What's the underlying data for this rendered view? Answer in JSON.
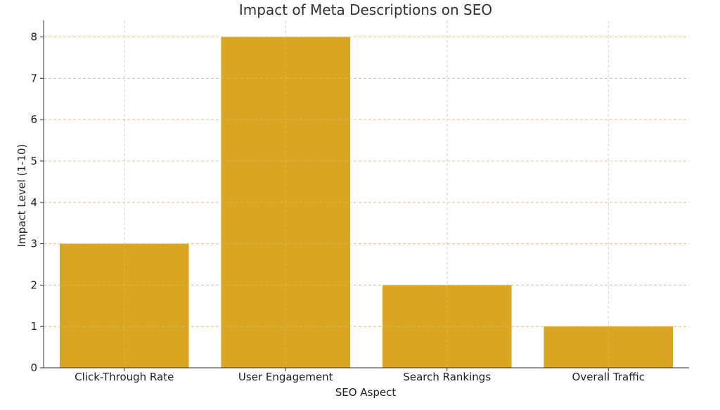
{
  "chart_data": {
    "type": "bar",
    "title": "Impact of Meta Descriptions on SEO",
    "xlabel": "SEO Aspect",
    "ylabel": "Impact Level (1-10)",
    "categories": [
      "Click-Through Rate",
      "User Engagement",
      "Search Rankings",
      "Overall Traffic"
    ],
    "values": [
      3,
      8,
      2,
      1
    ],
    "ylim": [
      0,
      8.4
    ],
    "yticks": [
      0,
      1,
      2,
      3,
      4,
      5,
      6,
      7,
      8
    ],
    "grid": true,
    "bar_color": "#DAA520",
    "grid_color": "#d3d3d3",
    "axis_color": "#333333"
  }
}
